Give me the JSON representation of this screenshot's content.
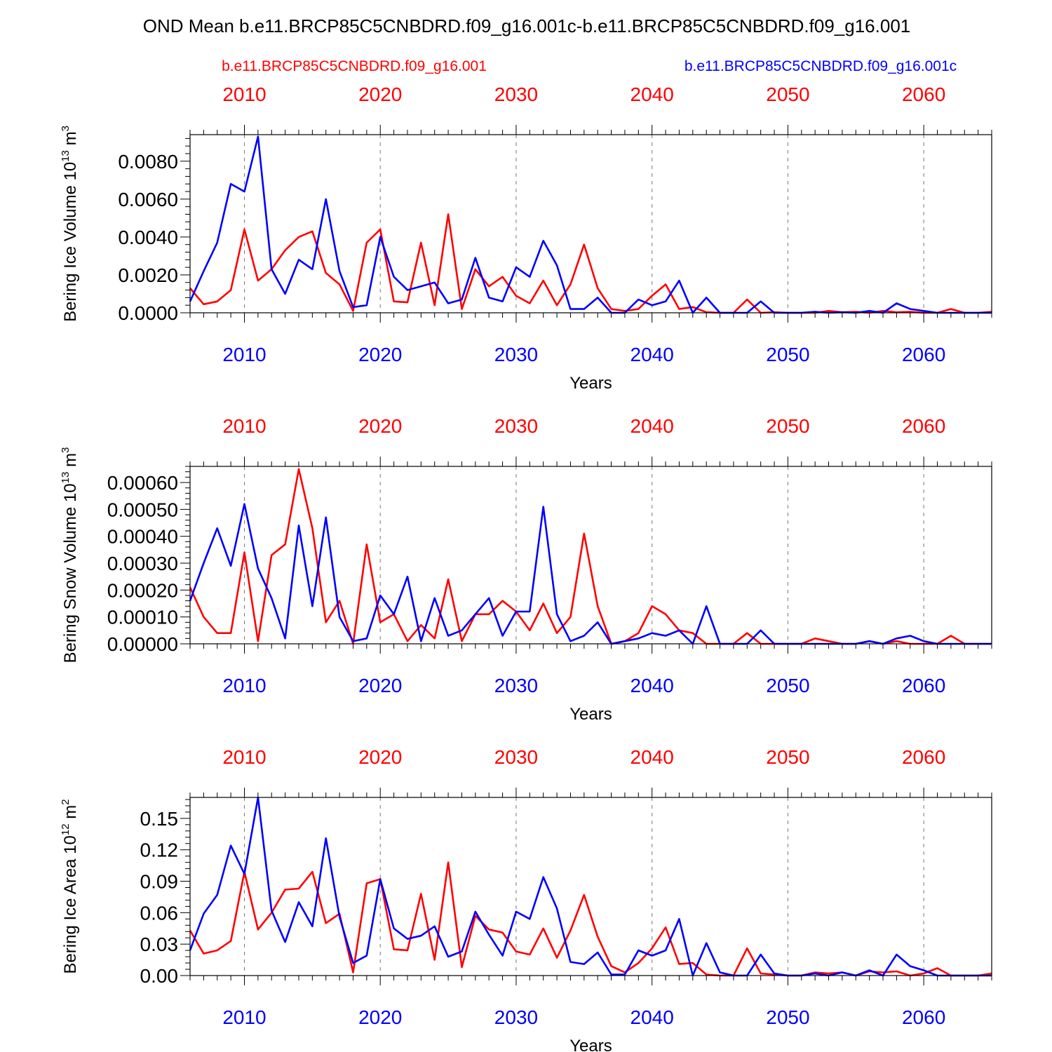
{
  "title": "OND Mean b.e11.BRCP85C5CNBDRD.f09_g16.001c-b.e11.BRCP85C5CNBDRD.f09_g16.001",
  "legend": {
    "red": "b.e11.BRCP85C5CNBDRD.f09_g16.001",
    "blue": "b.e11.BRCP85C5CNBDRD.f09_g16.001c"
  },
  "colors": {
    "red": "#ff0000",
    "blue": "#0000ff",
    "axis": "#000000",
    "grid": "#777777"
  },
  "chart_data": [
    {
      "type": "line",
      "ylabel": "Bering Ice Volume 10",
      "ylabel_exp": "13",
      "ylabel_unit": " m",
      "ylabel_unit_exp": "3",
      "xlabel": "Years",
      "xlim": [
        2006,
        2065
      ],
      "ylim": [
        0,
        0.0094
      ],
      "yticks": [
        0.0,
        0.002,
        0.004,
        0.006,
        0.008
      ],
      "yticklabels": [
        "0.0000",
        "0.0020",
        "0.0040",
        "0.0060",
        "0.0080"
      ],
      "xticks": [
        2010,
        2020,
        2030,
        2040,
        2050,
        2060
      ],
      "xticklabels": [
        "2010",
        "2020",
        "2030",
        "2040",
        "2050",
        "2060"
      ],
      "x_start": 2006,
      "series": [
        {
          "name": "b.e11.BRCP85C5CNBDRD.f09_g16.001",
          "color": "red",
          "values": [
            0.0013,
            0.00045,
            0.0006,
            0.0012,
            0.0044,
            0.0017,
            0.0023,
            0.0033,
            0.004,
            0.0043,
            0.0021,
            0.0015,
            0.0001,
            0.0037,
            0.0044,
            0.0006,
            0.00055,
            0.0037,
            0.0004,
            0.0052,
            0.0002,
            0.0023,
            0.0014,
            0.0019,
            0.0009,
            0.0005,
            0.0017,
            0.0004,
            0.0015,
            0.0036,
            0.0013,
            0.0002,
            0.0001,
            0.0002,
            0.0009,
            0.0015,
            0.0002,
            0.0003,
            3e-05,
            0.0,
            0.0,
            0.0007,
            0.0,
            3e-05,
            0.0,
            0.0,
            0.0,
            0.0001,
            3e-05,
            5e-05,
            0.0,
            0.0001,
            3e-05,
            5e-05,
            0.0,
            0.0,
            0.0002,
            0.0,
            0.0,
            5e-05
          ]
        },
        {
          "name": "b.e11.BRCP85C5CNBDRD.f09_g16.001c",
          "color": "blue",
          "values": [
            0.0006,
            0.0022,
            0.0037,
            0.0068,
            0.0064,
            0.0093,
            0.0023,
            0.001,
            0.0028,
            0.0023,
            0.006,
            0.0022,
            0.0003,
            0.0004,
            0.004,
            0.0019,
            0.0012,
            0.0014,
            0.0016,
            0.0005,
            0.0007,
            0.0029,
            0.0008,
            0.0006,
            0.0024,
            0.0019,
            0.0038,
            0.0025,
            0.0002,
            0.0002,
            0.0008,
            0.0,
            0.0,
            0.0007,
            0.0004,
            0.0006,
            0.0017,
            0.0,
            0.0008,
            0.0,
            0.0,
            0.0,
            0.0006,
            0.0,
            0.0,
            0.0,
            5e-05,
            0.0,
            3e-05,
            0.0,
            0.0001,
            0.0,
            0.0005,
            0.0002,
            0.0001,
            0.0,
            0.0,
            0.0,
            0.0,
            0.0
          ]
        }
      ]
    },
    {
      "type": "line",
      "ylabel": "Bering Snow Volume 10",
      "ylabel_exp": "13",
      "ylabel_unit": " m",
      "ylabel_unit_exp": "3",
      "xlabel": "Years",
      "xlim": [
        2006,
        2065
      ],
      "ylim": [
        0,
        0.00066
      ],
      "yticks": [
        0.0,
        0.0001,
        0.0002,
        0.0003,
        0.0004,
        0.0005,
        0.0006
      ],
      "yticklabels": [
        "0.00000",
        "0.00010",
        "0.00020",
        "0.00030",
        "0.00040",
        "0.00050",
        "0.00060"
      ],
      "xticks": [
        2010,
        2020,
        2030,
        2040,
        2050,
        2060
      ],
      "xticklabels": [
        "2010",
        "2020",
        "2030",
        "2040",
        "2050",
        "2060"
      ],
      "x_start": 2006,
      "series": [
        {
          "name": "b.e11.BRCP85C5CNBDRD.f09_g16.001",
          "color": "red",
          "values": [
            0.00021,
            0.0001,
            4e-05,
            4e-05,
            0.00034,
            1e-05,
            0.00033,
            0.00037,
            0.00065,
            0.00043,
            8e-05,
            0.00016,
            0.0,
            0.00037,
            8e-05,
            0.00011,
            1e-05,
            7e-05,
            2e-05,
            0.00024,
            1e-05,
            0.00011,
            0.00011,
            0.00016,
            0.00012,
            5e-05,
            0.00015,
            4e-05,
            0.0001,
            0.00041,
            0.00014,
            0.0,
            1e-05,
            4e-05,
            0.00014,
            0.00011,
            5e-05,
            4e-05,
            0.0,
            0.0,
            0.0,
            4e-05,
            0.0,
            0.0,
            0.0,
            0.0,
            2e-05,
            1e-05,
            0.0,
            0.0,
            1e-05,
            0.0,
            1e-05,
            0.0,
            0.0,
            0.0,
            3e-05,
            0.0,
            0.0,
            0.0
          ]
        },
        {
          "name": "b.e11.BRCP85C5CNBDRD.f09_g16.001c",
          "color": "blue",
          "values": [
            0.00016,
            0.0003,
            0.00043,
            0.00029,
            0.00052,
            0.00028,
            0.00017,
            2e-05,
            0.00044,
            0.00014,
            0.00047,
            0.0001,
            1e-05,
            2e-05,
            0.00018,
            0.00011,
            0.00025,
            1e-05,
            0.00017,
            3e-05,
            5e-05,
            0.00011,
            0.00017,
            3e-05,
            0.00012,
            0.00012,
            0.00051,
            0.00011,
            1e-05,
            3e-05,
            8e-05,
            0.0,
            1e-05,
            2e-05,
            4e-05,
            3e-05,
            5e-05,
            0.0,
            0.00014,
            0.0,
            0.0,
            0.0,
            5e-05,
            0.0,
            0.0,
            0.0,
            0.0,
            0.0,
            0.0,
            0.0,
            1e-05,
            0.0,
            2e-05,
            3e-05,
            1e-05,
            0.0,
            0.0,
            0.0,
            0.0,
            0.0
          ]
        }
      ]
    },
    {
      "type": "line",
      "ylabel": "Bering Ice Area 10",
      "ylabel_exp": "12",
      "ylabel_unit": " m",
      "ylabel_unit_exp": "2",
      "xlabel": "Years",
      "xlim": [
        2006,
        2065
      ],
      "ylim": [
        0,
        0.17
      ],
      "yticks": [
        0.0,
        0.03,
        0.06,
        0.09,
        0.12,
        0.15
      ],
      "yticklabels": [
        "0.00",
        "0.03",
        "0.06",
        "0.09",
        "0.12",
        "0.15"
      ],
      "xticks": [
        2010,
        2020,
        2030,
        2040,
        2050,
        2060
      ],
      "xticklabels": [
        "2010",
        "2020",
        "2030",
        "2040",
        "2050",
        "2060"
      ],
      "x_start": 2006,
      "series": [
        {
          "name": "b.e11.BRCP85C5CNBDRD.f09_g16.001",
          "color": "red",
          "values": [
            0.043,
            0.021,
            0.024,
            0.033,
            0.099,
            0.044,
            0.06,
            0.082,
            0.083,
            0.099,
            0.05,
            0.059,
            0.003,
            0.088,
            0.092,
            0.025,
            0.024,
            0.078,
            0.015,
            0.108,
            0.008,
            0.057,
            0.044,
            0.041,
            0.023,
            0.02,
            0.045,
            0.017,
            0.043,
            0.077,
            0.037,
            0.009,
            0.003,
            0.012,
            0.026,
            0.046,
            0.011,
            0.012,
            0.001,
            0.0,
            0.0,
            0.026,
            0.002,
            0.001,
            0.0,
            0.0,
            0.003,
            0.002,
            0.003,
            0.0,
            0.004,
            0.003,
            0.004,
            0.0,
            0.002,
            0.007,
            0.0,
            0.0,
            0.0,
            0.002
          ]
        },
        {
          "name": "b.e11.BRCP85C5CNBDRD.f09_g16.001c",
          "color": "blue",
          "values": [
            0.024,
            0.059,
            0.077,
            0.124,
            0.097,
            0.17,
            0.062,
            0.032,
            0.07,
            0.047,
            0.131,
            0.056,
            0.012,
            0.019,
            0.092,
            0.045,
            0.035,
            0.038,
            0.047,
            0.018,
            0.023,
            0.061,
            0.039,
            0.019,
            0.061,
            0.054,
            0.094,
            0.064,
            0.013,
            0.011,
            0.022,
            0.001,
            0.001,
            0.024,
            0.019,
            0.024,
            0.054,
            0.0,
            0.031,
            0.003,
            0.0,
            0.0,
            0.02,
            0.002,
            0.0,
            0.0,
            0.002,
            0.0,
            0.003,
            0.0,
            0.005,
            0.0,
            0.02,
            0.009,
            0.005,
            0.0,
            0.0,
            0.0,
            0.0,
            0.0
          ]
        }
      ]
    }
  ]
}
